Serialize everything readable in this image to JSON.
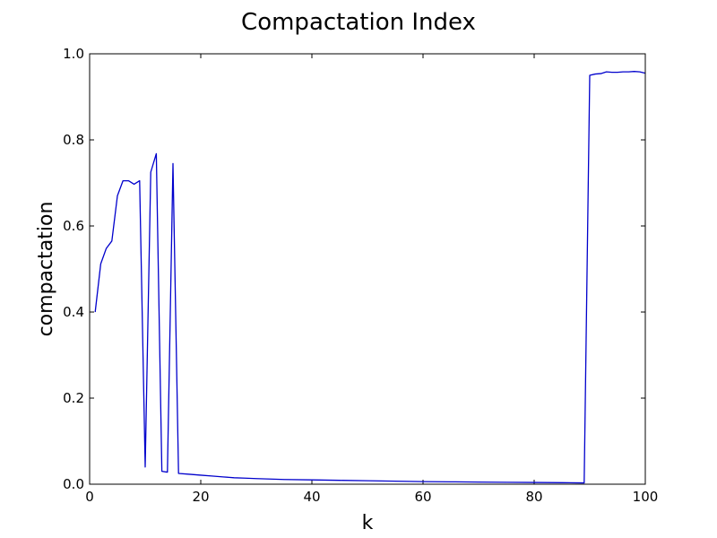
{
  "chart_data": {
    "type": "line",
    "title": "Compactation Index",
    "xlabel": "k",
    "ylabel": "compactation",
    "xlim": [
      0,
      100
    ],
    "ylim": [
      0.0,
      1.0
    ],
    "xticks": [
      0,
      20,
      40,
      60,
      80,
      100
    ],
    "xtick_labels": [
      "0",
      "20",
      "40",
      "60",
      "80",
      "100"
    ],
    "yticks": [
      0.0,
      0.2,
      0.4,
      0.6,
      0.8,
      1.0
    ],
    "ytick_labels": [
      "0.0",
      "0.2",
      "0.4",
      "0.6",
      "0.8",
      "1.0"
    ],
    "grid": false,
    "legend": "none",
    "line_color": "#0000cc",
    "series": [
      {
        "x": [
          1,
          2,
          3,
          4,
          5,
          6,
          7,
          8,
          9,
          10,
          11,
          12,
          13,
          14,
          15,
          16,
          18,
          20,
          22,
          24,
          26,
          28,
          30,
          35,
          40,
          45,
          50,
          55,
          60,
          65,
          70,
          75,
          80,
          85,
          89,
          90,
          91,
          92,
          93,
          94,
          95,
          96,
          97,
          98,
          99,
          100
        ],
        "y": [
          0.4,
          0.512,
          0.548,
          0.565,
          0.67,
          0.705,
          0.705,
          0.697,
          0.705,
          0.04,
          0.725,
          0.768,
          0.03,
          0.028,
          0.745,
          0.025,
          0.023,
          0.021,
          0.019,
          0.017,
          0.015,
          0.014,
          0.013,
          0.011,
          0.01,
          0.009,
          0.008,
          0.007,
          0.006,
          0.0055,
          0.005,
          0.0045,
          0.004,
          0.0035,
          0.003,
          0.95,
          0.953,
          0.954,
          0.958,
          0.957,
          0.957,
          0.958,
          0.958,
          0.959,
          0.958,
          0.955
        ]
      }
    ]
  }
}
